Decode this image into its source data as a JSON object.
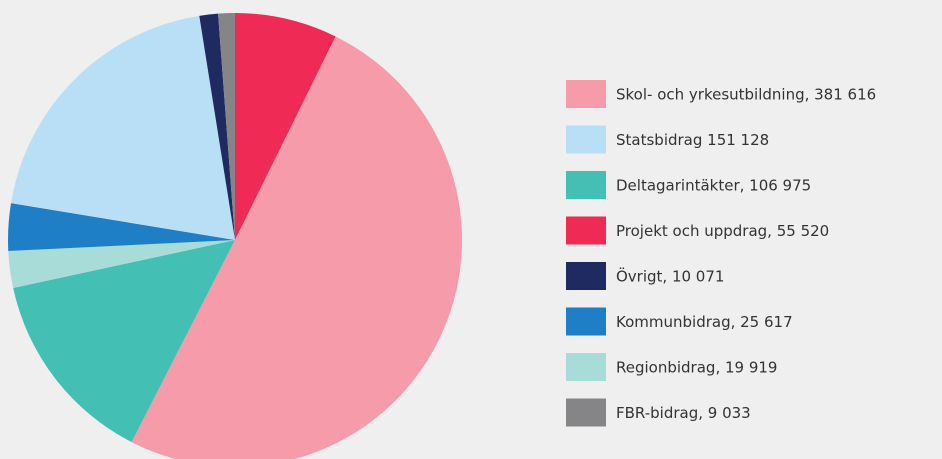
{
  "chart_data": {
    "type": "pie",
    "categories": [
      "Skol- och yrkesutbildning, 381 616",
      "Statsbidrag 151 128",
      "Deltagarintäkter, 106 975",
      "Projekt och uppdrag, 55 520",
      "Övrigt, 10 071",
      "Kommunbidrag, 25 617",
      "Regionbidrag, 19 919",
      "FBR-bidrag, 9 033"
    ],
    "values": [
      381616,
      151128,
      106975,
      55520,
      10071,
      25617,
      19919,
      9033
    ],
    "colors": [
      "#f59ba9",
      "#b9dff6",
      "#43c0b3",
      "#ee2a55",
      "#1f2a60",
      "#1e7fc6",
      "#a8dcd8",
      "#858587"
    ],
    "draw_order": [
      3,
      0,
      2,
      6,
      5,
      1,
      4,
      7
    ],
    "legend": "right"
  }
}
